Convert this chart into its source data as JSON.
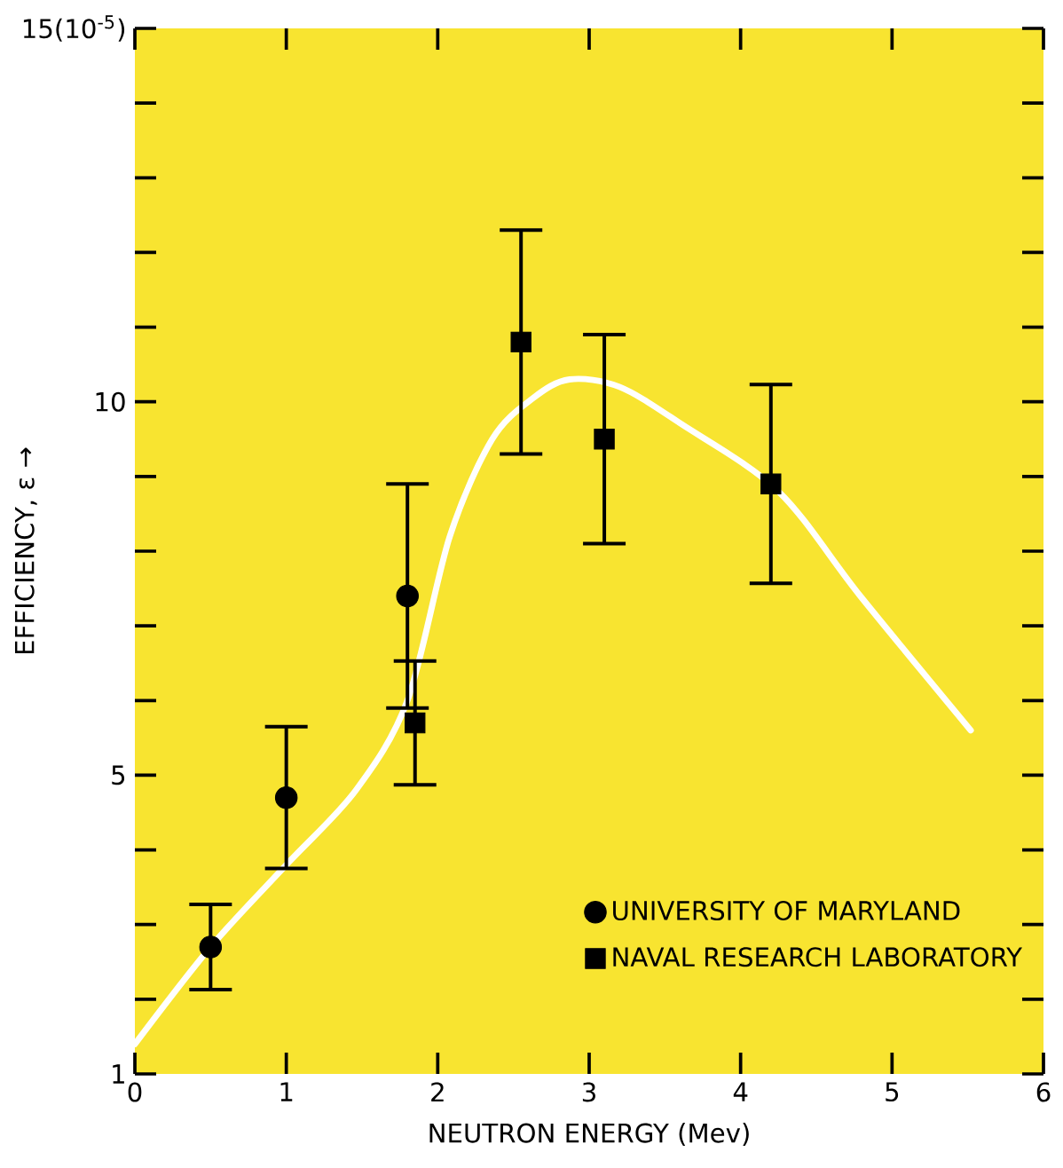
{
  "chart_data": {
    "type": "scatter",
    "xlabel": "NEUTRON ENERGY (Mev)",
    "ylabel": "EFFICIENCY, ε →",
    "xlim": [
      0,
      6
    ],
    "xticks": [
      0,
      1,
      2,
      3,
      4,
      5,
      6
    ],
    "ylim": [
      1,
      15
    ],
    "yticks": [
      1,
      {
        "value": 2,
        "label": null
      },
      {
        "value": 3,
        "label": null
      },
      {
        "value": 4,
        "label": null
      },
      5,
      {
        "value": 6,
        "label": null
      },
      {
        "value": 7,
        "label": null
      },
      {
        "value": 8,
        "label": null
      },
      {
        "value": 9,
        "label": null
      },
      10,
      {
        "value": 11,
        "label": null
      },
      {
        "value": 12,
        "label": null
      },
      {
        "value": 13,
        "label": null
      },
      {
        "value": 14,
        "label": null
      },
      {
        "value": 15,
        "label": "15(10$^{-5}$)"
      }
    ],
    "legend": "bottom right",
    "grid": false,
    "series": [
      {
        "type": "line",
        "color": "#ffffff",
        "marker": "none",
        "line_style": "solid",
        "x": [
          0,
          0.5,
          1,
          1.46,
          1.8,
          2.08,
          2.36,
          2.63,
          2.87,
          3.2,
          3.61,
          4.25,
          4.79,
          5.52
        ],
        "values": [
          1.4,
          2.7,
          3.8,
          4.8,
          6.0,
          8.2,
          9.5,
          10.05,
          10.3,
          10.2,
          9.7,
          8.8,
          7.4,
          5.6
        ]
      },
      {
        "name": "UNIVERSITY OF MARYLAND",
        "type": "scatter",
        "color": "#000000",
        "marker": "circle",
        "x": [
          0.5,
          1,
          1.8
        ],
        "values": [
          2.7,
          4.7,
          7.4
        ],
        "errors": [
          0.57,
          0.95,
          1.5
        ]
      },
      {
        "name": "NAVAL RESEARCH LABORATORY",
        "type": "scatter",
        "color": "#000000",
        "marker": "square",
        "x": [
          1.85,
          2.55,
          3.1,
          4.2
        ],
        "values": [
          5.7,
          10.8,
          9.5,
          8.9
        ],
        "errors": [
          0.83,
          1.5,
          1.4,
          1.33
        ]
      }
    ]
  }
}
